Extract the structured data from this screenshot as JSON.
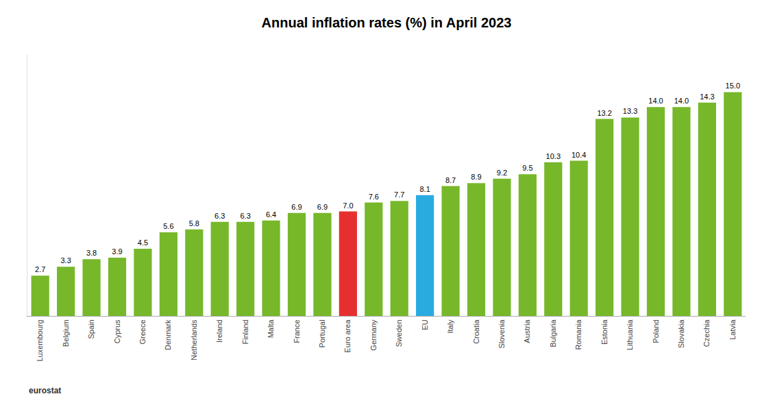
{
  "chart_data": {
    "type": "bar",
    "title": "Annual inflation rates (%) in April 2023",
    "categories": [
      "Luxembourg",
      "Belgium",
      "Spain",
      "Cyprus",
      "Greece",
      "Denmark",
      "Netherlands",
      "Ireland",
      "Finland",
      "Malta",
      "France",
      "Portugal",
      "Euro area",
      "Germany",
      "Sweden",
      "EU",
      "Italy",
      "Croatia",
      "Slovenia",
      "Austria",
      "Bulgaria",
      "Romania",
      "Estonia",
      "Lithuania",
      "Poland",
      "Slovakia",
      "Czechia",
      "Latvia"
    ],
    "values": [
      2.7,
      3.3,
      3.8,
      3.9,
      4.5,
      5.6,
      5.8,
      6.3,
      6.3,
      6.4,
      6.9,
      6.9,
      7.0,
      7.6,
      7.7,
      8.1,
      8.7,
      8.9,
      9.2,
      9.5,
      10.3,
      10.4,
      13.2,
      13.3,
      14.0,
      14.0,
      14.3,
      15.0
    ],
    "value_labels": [
      "2.7",
      "3.3",
      "3.8",
      "3.9",
      "4.5",
      "5.6",
      "5.8",
      "6.3",
      "6.3",
      "6.4",
      "6.9",
      "6.9",
      "7.0",
      "7.6",
      "7.7",
      "8.1",
      "8.7",
      "8.9",
      "9.2",
      "9.5",
      "10.3",
      "10.4",
      "13.2",
      "13.3",
      "14.0",
      "14.0",
      "14.3",
      "15.0"
    ],
    "colors": [
      "#76b82a",
      "#76b82a",
      "#76b82a",
      "#76b82a",
      "#76b82a",
      "#76b82a",
      "#76b82a",
      "#76b82a",
      "#76b82a",
      "#76b82a",
      "#76b82a",
      "#76b82a",
      "#e63030",
      "#76b82a",
      "#76b82a",
      "#29abe2",
      "#76b82a",
      "#76b82a",
      "#76b82a",
      "#76b82a",
      "#76b82a",
      "#76b82a",
      "#76b82a",
      "#76b82a",
      "#76b82a",
      "#76b82a",
      "#76b82a",
      "#76b82a"
    ],
    "ylim": [
      0,
      17.5
    ],
    "data_labels": true,
    "tick_labels": "x",
    "grid": false,
    "annotations": [
      "eurostat"
    ]
  }
}
